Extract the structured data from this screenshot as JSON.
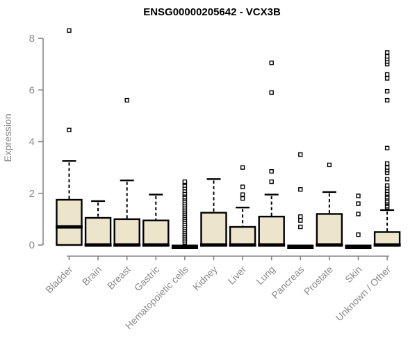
{
  "title": "ENSG00000205642 - VCX3B",
  "chart_data": {
    "type": "boxplot",
    "title": "ENSG00000205642 - VCX3B",
    "xlabel": "",
    "ylabel": "Expression",
    "ylim": [
      0,
      8
    ],
    "yticks": [
      0,
      2,
      4,
      6,
      8
    ],
    "grid": false,
    "legend": false,
    "categories": [
      "Bladder",
      "Brain",
      "Breast",
      "Gastric",
      "Hematopoietic cells",
      "Kidney",
      "Liver",
      "Lung",
      "Pancreas",
      "Prostate",
      "Skin",
      "Unknown / Other"
    ],
    "series": [
      {
        "name": "Bladder",
        "whislo": 0,
        "q1": 0,
        "med": 0.7,
        "q3": 1.75,
        "whishi": 3.25,
        "outliers": [
          4.45,
          8.3
        ]
      },
      {
        "name": "Brain",
        "whislo": 0,
        "q1": 0,
        "med": 0,
        "q3": 1.05,
        "whishi": 1.7,
        "outliers": []
      },
      {
        "name": "Breast",
        "whislo": 0,
        "q1": 0,
        "med": 0,
        "q3": 1.0,
        "whishi": 2.5,
        "outliers": [
          5.6
        ]
      },
      {
        "name": "Gastric",
        "whislo": 0,
        "q1": 0,
        "med": 0,
        "q3": 0.95,
        "whishi": 1.95,
        "outliers": []
      },
      {
        "name": "Hematopoietic cells",
        "whislo": 0,
        "q1": 0,
        "med": 0,
        "q3": 0,
        "whishi": 0,
        "outliers": [
          0.1,
          0.18,
          0.26,
          0.34,
          0.42,
          0.5,
          0.58,
          0.66,
          0.74,
          0.82,
          0.9,
          0.98,
          1.06,
          1.14,
          1.22,
          1.3,
          1.38,
          1.46,
          1.54,
          1.62,
          1.7,
          1.78,
          1.85,
          1.95,
          2.0,
          2.1,
          2.2,
          2.3,
          2.4,
          2.45
        ]
      },
      {
        "name": "Kidney",
        "whislo": 0,
        "q1": 0,
        "med": 0,
        "q3": 1.25,
        "whishi": 2.55,
        "outliers": []
      },
      {
        "name": "Liver",
        "whislo": 0,
        "q1": 0,
        "med": 0,
        "q3": 0.7,
        "whishi": 1.45,
        "outliers": [
          1.8,
          1.95,
          2.25,
          3.0
        ]
      },
      {
        "name": "Lung",
        "whislo": 0,
        "q1": 0,
        "med": 0,
        "q3": 1.1,
        "whishi": 1.95,
        "outliers": [
          2.45,
          2.85,
          5.9,
          7.05
        ]
      },
      {
        "name": "Pancreas",
        "whislo": 0,
        "q1": 0,
        "med": 0,
        "q3": 0,
        "whishi": 0,
        "outliers": [
          0.7,
          0.95,
          1.1,
          2.15,
          3.5
        ]
      },
      {
        "name": "Prostate",
        "whislo": 0,
        "q1": 0,
        "med": 0,
        "q3": 1.2,
        "whishi": 2.05,
        "outliers": [
          3.1
        ]
      },
      {
        "name": "Skin",
        "whislo": 0,
        "q1": 0,
        "med": 0,
        "q3": 0,
        "whishi": 0,
        "outliers": [
          0.4,
          1.2,
          1.6,
          1.9
        ]
      },
      {
        "name": "Unknown / Other",
        "whislo": 0,
        "q1": 0,
        "med": 0,
        "q3": 0.5,
        "whishi": 1.35,
        "outliers": [
          1.45,
          1.5,
          1.6,
          1.65,
          1.7,
          1.8,
          1.85,
          1.95,
          2.0,
          2.1,
          2.2,
          2.3,
          2.55,
          2.8,
          2.9,
          3.0,
          3.15,
          3.75,
          5.6,
          5.95,
          6.45,
          6.6,
          7.0,
          7.1,
          7.2,
          7.3,
          7.45
        ]
      }
    ],
    "colors": {
      "box_fill": "#ece5cb",
      "box_stroke": "#000000",
      "median": "#000000",
      "whisker": "#000000",
      "outlier_stroke": "#000000",
      "outlier_fill": "#ffffff",
      "axis": "#858585",
      "axis_text": "#8a8a8a",
      "title": "#000000",
      "background": "#ffffff"
    }
  }
}
